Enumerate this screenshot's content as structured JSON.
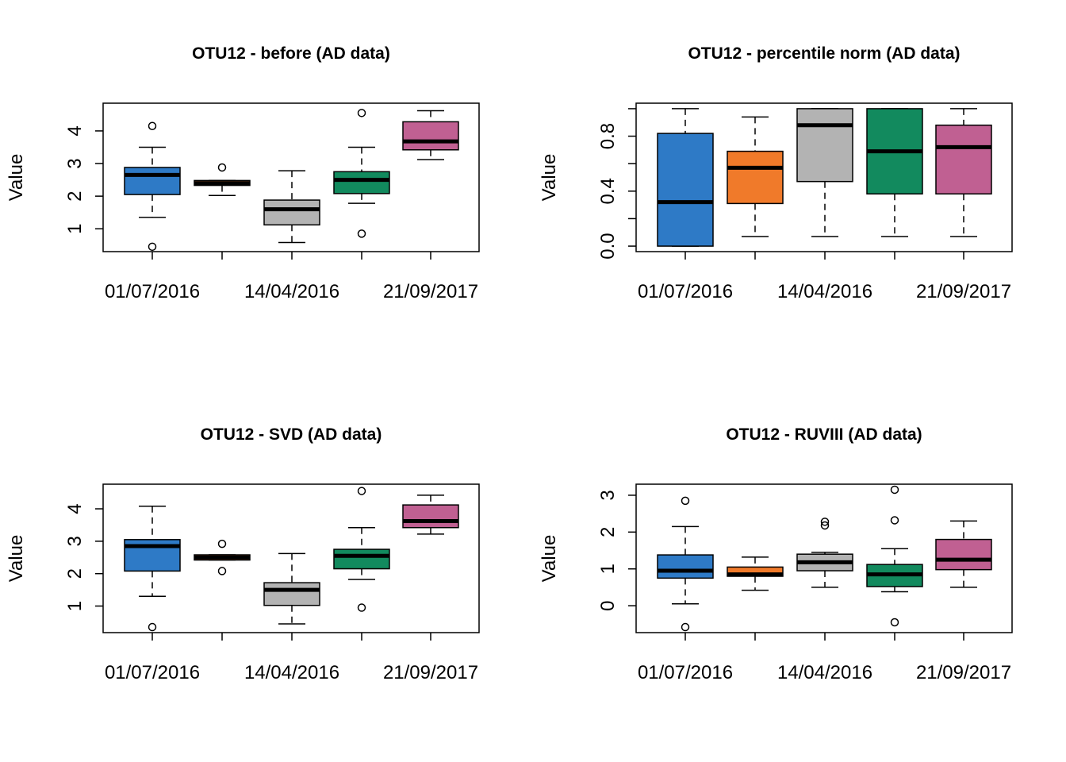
{
  "chart_data": [
    {
      "type": "box",
      "title": "OTU12 - before (AD data)",
      "ylabel": "Value",
      "xlabel": "",
      "categories": [
        "01/07/2016",
        "",
        "14/04/2016",
        "",
        "21/09/2017"
      ],
      "x_tick_labels": [
        "01/07/2016",
        "14/04/2016",
        "21/09/2017"
      ],
      "y_ticks": [
        "1",
        "2",
        "3",
        "4"
      ],
      "ylim": [
        0.3,
        4.85
      ],
      "grid": false,
      "boxes": [
        {
          "low": 1.35,
          "q1": 2.05,
          "median": 2.65,
          "q3": 2.88,
          "high": 3.5,
          "outliers": [
            4.15,
            0.45
          ]
        },
        {
          "low": 2.02,
          "q1": 2.33,
          "median": 2.4,
          "q3": 2.48,
          "high": 2.48,
          "outliers": [
            2.88
          ]
        },
        {
          "low": 0.58,
          "q1": 1.12,
          "median": 1.6,
          "q3": 1.88,
          "high": 2.78,
          "outliers": []
        },
        {
          "low": 1.78,
          "q1": 2.08,
          "median": 2.5,
          "q3": 2.75,
          "high": 3.5,
          "outliers": [
            4.55,
            0.85
          ]
        },
        {
          "low": 3.12,
          "q1": 3.42,
          "median": 3.68,
          "q3": 4.28,
          "high": 4.62,
          "outliers": []
        }
      ]
    },
    {
      "type": "box",
      "title": "OTU12 - percentile norm (AD data)",
      "ylabel": "Value",
      "xlabel": "",
      "categories": [
        "01/07/2016",
        "",
        "14/04/2016",
        "",
        "21/09/2017"
      ],
      "x_tick_labels": [
        "01/07/2016",
        "14/04/2016",
        "21/09/2017"
      ],
      "y_ticks": [
        "0.0",
        "0.4",
        "0.8"
      ],
      "ylim": [
        -0.04,
        1.04
      ],
      "grid": false,
      "boxes": [
        {
          "low": 0.0,
          "q1": 0.0,
          "median": 0.32,
          "q3": 0.82,
          "high": 1.0,
          "outliers": []
        },
        {
          "low": 0.07,
          "q1": 0.31,
          "median": 0.57,
          "q3": 0.69,
          "high": 0.94,
          "outliers": []
        },
        {
          "low": 0.07,
          "q1": 0.47,
          "median": 0.88,
          "q3": 1.0,
          "high": 1.0,
          "outliers": []
        },
        {
          "low": 0.07,
          "q1": 0.38,
          "median": 0.69,
          "q3": 1.0,
          "high": 1.0,
          "outliers": []
        },
        {
          "low": 0.07,
          "q1": 0.38,
          "median": 0.72,
          "q3": 0.88,
          "high": 1.0,
          "outliers": []
        }
      ]
    },
    {
      "type": "box",
      "title": "OTU12 - SVD (AD data)",
      "ylabel": "Value",
      "xlabel": "",
      "categories": [
        "01/07/2016",
        "",
        "14/04/2016",
        "",
        "21/09/2017"
      ],
      "x_tick_labels": [
        "01/07/2016",
        "14/04/2016",
        "21/09/2017"
      ],
      "y_ticks": [
        "1",
        "2",
        "3",
        "4"
      ],
      "ylim": [
        0.18,
        4.76
      ],
      "grid": false,
      "boxes": [
        {
          "low": 1.3,
          "q1": 2.08,
          "median": 2.85,
          "q3": 3.05,
          "high": 4.08,
          "outliers": [
            0.35
          ]
        },
        {
          "low": 2.42,
          "q1": 2.42,
          "median": 2.5,
          "q3": 2.58,
          "high": 2.58,
          "outliers": [
            2.92,
            2.08
          ]
        },
        {
          "low": 0.45,
          "q1": 1.02,
          "median": 1.5,
          "q3": 1.72,
          "high": 2.62,
          "outliers": []
        },
        {
          "low": 1.82,
          "q1": 2.15,
          "median": 2.55,
          "q3": 2.75,
          "high": 3.42,
          "outliers": [
            4.55,
            0.95
          ]
        },
        {
          "low": 3.22,
          "q1": 3.42,
          "median": 3.62,
          "q3": 4.12,
          "high": 4.42,
          "outliers": []
        }
      ]
    },
    {
      "type": "box",
      "title": "OTU12 - RUVIII (AD data)",
      "ylabel": "Value",
      "xlabel": "",
      "categories": [
        "01/07/2016",
        "",
        "14/04/2016",
        "",
        "21/09/2017"
      ],
      "x_tick_labels": [
        "01/07/2016",
        "14/04/2016",
        "21/09/2017"
      ],
      "y_ticks": [
        "0",
        "1",
        "2",
        "3"
      ],
      "ylim": [
        -0.73,
        3.3
      ],
      "grid": false,
      "boxes": [
        {
          "low": 0.05,
          "q1": 0.75,
          "median": 0.95,
          "q3": 1.38,
          "high": 2.15,
          "outliers": [
            2.85,
            -0.58
          ]
        },
        {
          "low": 0.42,
          "q1": 0.8,
          "median": 0.85,
          "q3": 1.05,
          "high": 1.32,
          "outliers": []
        },
        {
          "low": 0.5,
          "q1": 0.95,
          "median": 1.18,
          "q3": 1.4,
          "high": 1.45,
          "outliers": [
            2.18,
            2.28
          ]
        },
        {
          "low": 0.38,
          "q1": 0.52,
          "median": 0.85,
          "q3": 1.12,
          "high": 1.55,
          "outliers": [
            3.15,
            2.32,
            -0.45
          ]
        },
        {
          "low": 0.5,
          "q1": 0.98,
          "median": 1.25,
          "q3": 1.8,
          "high": 2.3,
          "outliers": []
        }
      ]
    }
  ],
  "colors": {
    "box_fills": [
      "#2e7ac6",
      "#f07a2a",
      "#b3b3b3",
      "#128a5e",
      "#c06092"
    ],
    "stroke": "#000000",
    "background": "#ffffff"
  }
}
